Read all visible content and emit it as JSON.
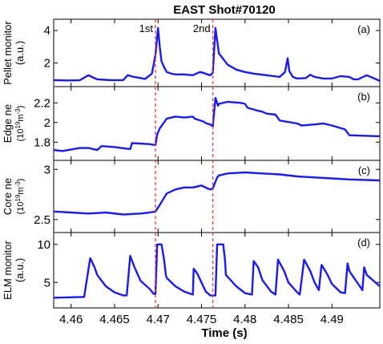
{
  "chart_data": {
    "type": "line",
    "title": "EAST Shot#70120",
    "xlabel": "Time (s)",
    "xlim": [
      4.458,
      4.4955
    ],
    "xticks": [
      "4.46",
      "4.465",
      "4.47",
      "4.475",
      "4.48",
      "4.485",
      "4.49"
    ],
    "markers": [
      {
        "label": "1st",
        "x": 4.4697
      },
      {
        "label": "2nd",
        "x": 4.4763
      }
    ],
    "color": "#1a1aee",
    "marker_color": "#e8383d",
    "panels": [
      {
        "id": "a",
        "panel_label": "(a)",
        "ylabel": [
          "Pellet monitor",
          "(a.u.)"
        ],
        "ylim": [
          0.7,
          4.3
        ],
        "yticks": [
          "2",
          "4"
        ],
        "series": {
          "x": [
            4.458,
            4.4595,
            4.461,
            4.4615,
            4.462,
            4.4625,
            4.463,
            4.4645,
            4.466,
            4.4665,
            4.4672,
            4.4678,
            4.4685,
            4.4693,
            4.4697,
            4.47,
            4.4702,
            4.4704,
            4.4707,
            4.471,
            4.4715,
            4.472,
            4.473,
            4.474,
            4.4748,
            4.4752,
            4.4758,
            4.476,
            4.4763,
            4.4766,
            4.477,
            4.478,
            4.479,
            4.48,
            4.481,
            4.482,
            4.4833,
            4.484,
            4.4846,
            4.4849,
            4.4851,
            4.4855,
            4.486,
            4.487,
            4.4875,
            4.488,
            4.489,
            4.49,
            4.491,
            4.492,
            4.4925,
            4.493,
            4.494,
            4.4955
          ],
          "y": [
            0.95,
            0.93,
            0.94,
            1.1,
            1.25,
            1.12,
            1.0,
            0.95,
            0.95,
            1.25,
            1.15,
            1.1,
            1.02,
            1.35,
            2.5,
            4.15,
            3.0,
            2.1,
            1.75,
            1.45,
            1.35,
            1.3,
            1.3,
            1.25,
            1.45,
            1.4,
            1.28,
            1.25,
            1.4,
            4.15,
            2.6,
            1.9,
            1.6,
            1.45,
            1.35,
            1.28,
            1.2,
            1.15,
            1.45,
            2.3,
            1.5,
            1.15,
            1.05,
            1.08,
            1.28,
            1.15,
            1.05,
            1.05,
            1.2,
            1.15,
            1.0,
            1.0,
            1.25,
            0.9
          ]
        }
      },
      {
        "id": "b",
        "panel_label": "(b)",
        "ylabel": [
          "Edge ne",
          "(10",
          "19",
          "m",
          "-3",
          ")"
        ],
        "ylim": [
          1.68,
          2.3
        ],
        "yticks": [
          "1.8",
          "2",
          "2.2"
        ],
        "series": {
          "x": [
            4.458,
            4.459,
            4.461,
            4.462,
            4.463,
            4.4635,
            4.465,
            4.4668,
            4.467,
            4.469,
            4.4697,
            4.4699,
            4.4702,
            4.471,
            4.472,
            4.473,
            4.474,
            4.4742,
            4.4752,
            4.4756,
            4.476,
            4.4763,
            4.4766,
            4.4769,
            4.477,
            4.478,
            4.4795,
            4.48,
            4.4803,
            4.4815,
            4.482,
            4.4825,
            4.4835,
            4.484,
            4.486,
            4.4865,
            4.488,
            4.489,
            4.49,
            4.4915,
            4.492,
            4.4955
          ],
          "y": [
            1.72,
            1.71,
            1.74,
            1.74,
            1.72,
            1.76,
            1.75,
            1.73,
            1.79,
            1.78,
            1.77,
            1.88,
            1.94,
            2.04,
            2.06,
            2.05,
            2.06,
            2.04,
            2.01,
            1.99,
            1.98,
            1.96,
            2.25,
            2.17,
            2.19,
            2.21,
            2.2,
            2.19,
            2.15,
            2.12,
            2.11,
            2.09,
            2.08,
            2.02,
            1.99,
            1.97,
            1.98,
            1.99,
            1.97,
            1.93,
            1.87,
            1.86
          ]
        }
      },
      {
        "id": "c",
        "panel_label": "(c)",
        "ylabel": [
          "Core ne",
          "(10",
          "19",
          "m",
          "-3",
          ")"
        ],
        "ylim": [
          2.45,
          3.05
        ],
        "yticks": [
          "2.5",
          "3"
        ],
        "series": {
          "x": [
            4.458,
            4.46,
            4.462,
            4.464,
            4.466,
            4.468,
            4.469,
            4.4697,
            4.4703,
            4.471,
            4.472,
            4.473,
            4.474,
            4.475,
            4.4757,
            4.476,
            4.4763,
            4.4768,
            4.477,
            4.478,
            4.48,
            4.482,
            4.484,
            4.486,
            4.488,
            4.49,
            4.492,
            4.4955
          ],
          "y": [
            2.58,
            2.57,
            2.56,
            2.57,
            2.55,
            2.56,
            2.57,
            2.58,
            2.66,
            2.76,
            2.8,
            2.82,
            2.82,
            2.84,
            2.81,
            2.8,
            2.81,
            2.92,
            2.94,
            2.96,
            2.97,
            2.96,
            2.95,
            2.93,
            2.92,
            2.91,
            2.9,
            2.89
          ]
        }
      },
      {
        "id": "d",
        "panel_label": "(d)",
        "ylabel": [
          "ELM monitor",
          "(a.u.)"
        ],
        "ylim": [
          2.5,
          10.5
        ],
        "yticks": [
          "5",
          "10"
        ],
        "series": {
          "x": [
            4.458,
            4.4615,
            4.4622,
            4.4627,
            4.463,
            4.464,
            4.465,
            4.466,
            4.4664,
            4.4668,
            4.4673,
            4.468,
            4.469,
            4.4695,
            4.4697,
            4.4699,
            4.4704,
            4.4707,
            4.4709,
            4.471,
            4.472,
            4.473,
            4.474,
            4.4741,
            4.4745,
            4.4752,
            4.4755,
            4.476,
            4.4766,
            4.4768,
            4.4775,
            4.4777,
            4.4778,
            4.479,
            4.48,
            4.4808,
            4.481,
            4.4815,
            4.482,
            4.483,
            4.4835,
            4.4838,
            4.4845,
            4.485,
            4.486,
            4.4863,
            4.4868,
            4.4875,
            4.488,
            4.4885,
            4.4888,
            4.4895,
            4.49,
            4.491,
            4.4915,
            4.4918,
            4.492,
            4.4935,
            4.4937,
            4.494,
            4.4955
          ],
          "y": [
            3.0,
            3.1,
            8.2,
            7.0,
            6.0,
            4.5,
            3.7,
            3.3,
            3.3,
            8.5,
            7.0,
            5.2,
            4.2,
            3.5,
            3.5,
            10.0,
            10.0,
            8.0,
            6.0,
            5.6,
            4.5,
            3.8,
            3.4,
            6.8,
            6.2,
            4.5,
            3.8,
            3.3,
            3.3,
            10.0,
            10.0,
            8.0,
            6.0,
            4.5,
            3.6,
            3.4,
            7.8,
            7.0,
            5.3,
            3.8,
            3.4,
            8.0,
            6.5,
            5.0,
            3.7,
            3.4,
            8.0,
            6.5,
            5.0,
            4.0,
            7.3,
            6.0,
            4.8,
            3.7,
            3.6,
            7.5,
            6.5,
            4.0,
            7.0,
            6.0,
            4.5
          ]
        }
      }
    ]
  }
}
